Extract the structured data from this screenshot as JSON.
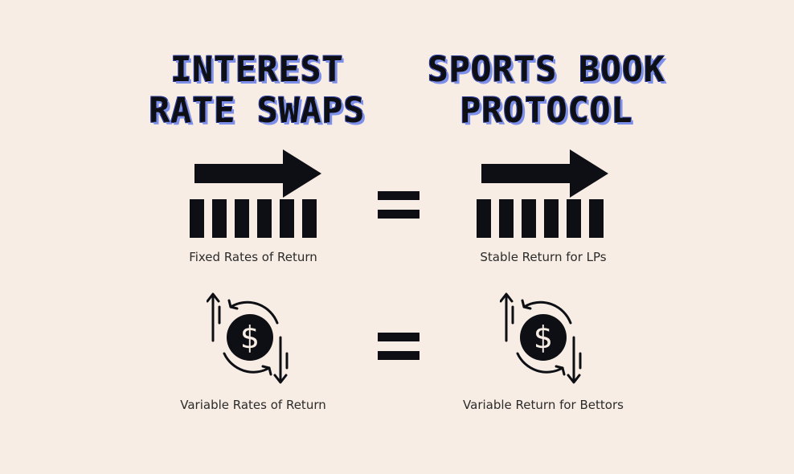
{
  "left": {
    "title_line1": "INTEREST",
    "title_line2": "RATE SWAPS",
    "fixed_caption": "Fixed Rates of Return",
    "variable_caption": "Variable Rates of Return"
  },
  "right": {
    "title_line1": "SPORTS BOOK",
    "title_line2": "PROTOCOL",
    "stable_caption": "Stable Return for LPs",
    "variable_caption": "Variable Return for Bettors"
  },
  "icons": {
    "fixed": "arrow-over-bars-icon",
    "variable": "dollar-coin-arrows-icon",
    "equals": "equals-icon"
  },
  "colors": {
    "background": "#f7ede4",
    "ink": "#0d0f14",
    "title_shadow": "#7d8fe8"
  }
}
